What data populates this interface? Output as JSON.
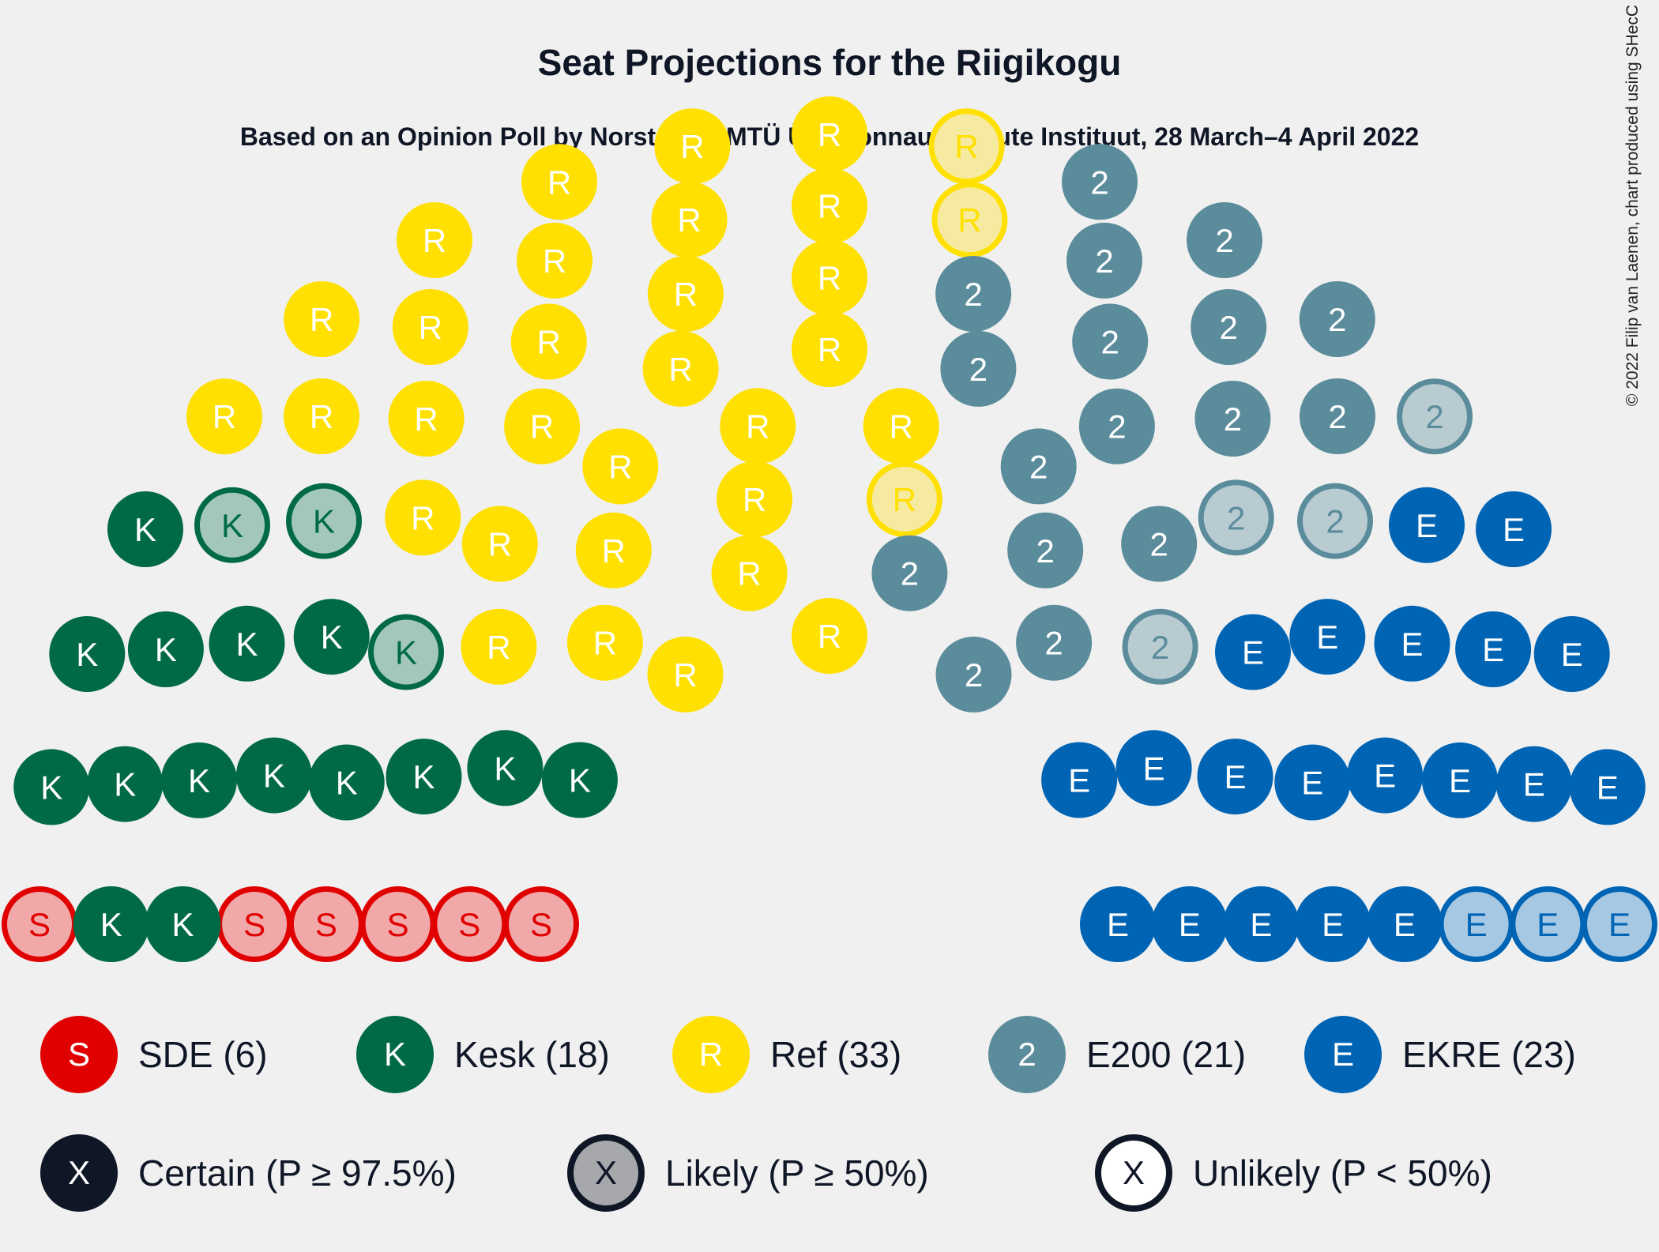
{
  "title": "Seat Projections for the Riigikogu",
  "subtitle": "Based on an Opinion Poll by Norstat for MTÜ Ühiskonnauuringute Instituut, 28 March–4 April 2022",
  "credit": "© 2022 Filip van Laenen, chart produced using SHecC",
  "chart_data": {
    "type": "parliament",
    "total_seats": 101,
    "series": [
      {
        "name": "SDE (6)",
        "letter": "S",
        "seats": 6,
        "color": "#e10000",
        "light": "#f0a8a8",
        "certain": 0,
        "likely": 6,
        "unlikely": 0
      },
      {
        "name": "Kesk (18)",
        "letter": "K",
        "seats": 18,
        "color": "#006a47",
        "light": "#a3c8bb",
        "certain": 15,
        "likely": 3,
        "unlikely": 0
      },
      {
        "name": "Ref (33)",
        "letter": "R",
        "seats": 33,
        "color": "#ffe000",
        "light": "#f5eaa0",
        "certain": 30,
        "likely": 3,
        "unlikely": 0
      },
      {
        "name": "E200 (21)",
        "letter": "2",
        "seats": 21,
        "color": "#5b8c9b",
        "light": "#b7cbd1",
        "certain": 17,
        "likely": 4,
        "unlikely": 0
      },
      {
        "name": "EKRE (23)",
        "letter": "E",
        "seats": 23,
        "color": "#0064b4",
        "light": "#a6c8e3",
        "certain": 20,
        "likely": 3,
        "unlikely": 0
      }
    ],
    "certainty_legend": [
      {
        "name": "Certain (P ≥ 97.5%)",
        "letter": "X",
        "fill": "#0f1626",
        "stroke": "#0f1626",
        "text": "#ffffff"
      },
      {
        "name": "Likely (P ≥ 50%)",
        "letter": "X",
        "fill": "#a6a8ab",
        "stroke": "#0f1626",
        "text": "#0f1626"
      },
      {
        "name": "Unlikely (P < 50%)",
        "letter": "X",
        "fill": "#ffffff",
        "stroke": "#0f1626",
        "text": "#0f1626"
      }
    ]
  }
}
